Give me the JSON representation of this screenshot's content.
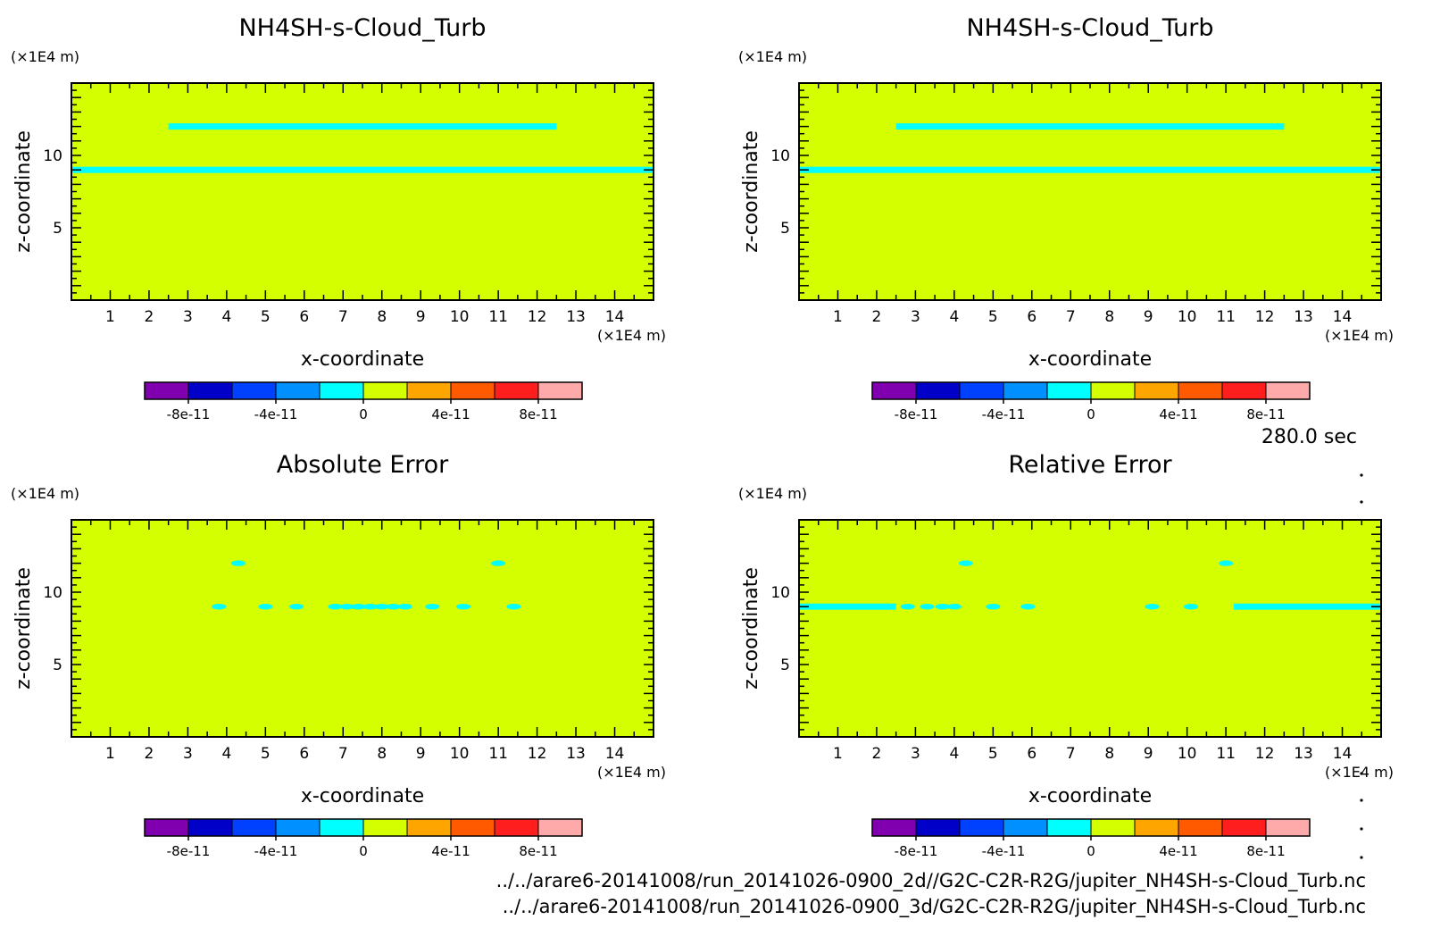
{
  "time_label": "280.0 sec",
  "file_paths": [
    "../../arare6-20141008/run_20141026-0900_2d//G2C-C2R-R2G/jupiter_NH4SH-s-Cloud_Turb.nc",
    "../../arare6-20141008/run_20141026-0900_3d/G2C-C2R-R2G/jupiter_NH4SH-s-Cloud_Turb.nc"
  ],
  "colors": {
    "field": "#d4ff00",
    "cloud": "#00ffff",
    "colorbar": [
      "#8000b0",
      "#0000c8",
      "#0040ff",
      "#0090ff",
      "#00ffff",
      "#d4ff00",
      "#ffa500",
      "#ff5a00",
      "#ff1e1e",
      "#ffaaaa"
    ]
  },
  "chart_data": [
    {
      "type": "heatmap",
      "title": "NH4SH-s-Cloud_Turb",
      "xlabel": "x-coordinate",
      "ylabel": "z-coordinate",
      "x_unit": "(×1E4 m)",
      "y_unit": "(×1E4 m)",
      "xlim": [
        0,
        15
      ],
      "ylim": [
        0,
        15
      ],
      "x_ticks": [
        "1",
        "2",
        "3",
        "4",
        "5",
        "6",
        "7",
        "8",
        "9",
        "10",
        "11",
        "12",
        "13",
        "14"
      ],
      "y_ticks": [
        "5",
        "10"
      ],
      "colorbar_ticks": [
        "-8e-11",
        "-4e-11",
        "0",
        "4e-11",
        "8e-11"
      ],
      "background_value": 0,
      "features": [
        {
          "description": "cloud layer",
          "z": 9.0,
          "x_range": [
            0,
            15
          ]
        },
        {
          "description": "cloud layer",
          "z": 12.0,
          "x_range": [
            2.5,
            12.5
          ]
        }
      ]
    },
    {
      "type": "heatmap",
      "title": "NH4SH-s-Cloud_Turb",
      "xlabel": "x-coordinate",
      "ylabel": "z-coordinate",
      "x_unit": "(×1E4 m)",
      "y_unit": "(×1E4 m)",
      "xlim": [
        0,
        15
      ],
      "ylim": [
        0,
        15
      ],
      "x_ticks": [
        "1",
        "2",
        "3",
        "4",
        "5",
        "6",
        "7",
        "8",
        "9",
        "10",
        "11",
        "12",
        "13",
        "14"
      ],
      "y_ticks": [
        "5",
        "10"
      ],
      "colorbar_ticks": [
        "-8e-11",
        "-4e-11",
        "0",
        "4e-11",
        "8e-11"
      ],
      "background_value": 0,
      "features": [
        {
          "description": "cloud layer",
          "z": 9.0,
          "x_range": [
            0,
            15
          ]
        },
        {
          "description": "cloud layer",
          "z": 12.0,
          "x_range": [
            2.5,
            12.5
          ]
        }
      ]
    },
    {
      "type": "heatmap",
      "title": "Absolute Error",
      "xlabel": "x-coordinate",
      "ylabel": "z-coordinate",
      "x_unit": "(×1E4 m)",
      "y_unit": "(×1E4 m)",
      "xlim": [
        0,
        15
      ],
      "ylim": [
        0,
        15
      ],
      "x_ticks": [
        "1",
        "2",
        "3",
        "4",
        "5",
        "6",
        "7",
        "8",
        "9",
        "10",
        "11",
        "12",
        "13",
        "14"
      ],
      "y_ticks": [
        "5",
        "10"
      ],
      "colorbar_ticks": [
        "-8e-11",
        "-4e-11",
        "0",
        "4e-11",
        "8e-11"
      ],
      "background_value": 0,
      "features": [
        {
          "description": "spots",
          "z": 9.0,
          "x": [
            3.8,
            5.0,
            5.8,
            6.8,
            7.1,
            7.4,
            7.7,
            8.0,
            8.3,
            8.6,
            9.3,
            10.1,
            11.4
          ]
        },
        {
          "description": "spots",
          "z": 12.0,
          "x": [
            4.3,
            11.0
          ]
        }
      ]
    },
    {
      "type": "heatmap",
      "title": "Relative Error",
      "xlabel": "x-coordinate",
      "ylabel": "z-coordinate",
      "x_unit": "(×1E4 m)",
      "y_unit": "(×1E4 m)",
      "xlim": [
        0,
        15
      ],
      "ylim": [
        0,
        15
      ],
      "x_ticks": [
        "1",
        "2",
        "3",
        "4",
        "5",
        "6",
        "7",
        "8",
        "9",
        "10",
        "11",
        "12",
        "13",
        "14"
      ],
      "y_ticks": [
        "5",
        "10"
      ],
      "colorbar_ticks": [
        "-8e-11",
        "-4e-11",
        "0",
        "4e-11",
        "8e-11"
      ],
      "background_value": 0,
      "features": [
        {
          "description": "band segments",
          "z": 9.0,
          "x_ranges": [
            [
              0,
              2.5
            ],
            [
              11.2,
              15
            ]
          ]
        },
        {
          "description": "spots",
          "z": 9.0,
          "x": [
            2.8,
            3.3,
            3.7,
            4.0,
            5.0,
            5.9,
            9.1,
            10.1
          ]
        },
        {
          "description": "spots",
          "z": 12.0,
          "x": [
            4.3,
            11.0
          ]
        }
      ]
    }
  ]
}
